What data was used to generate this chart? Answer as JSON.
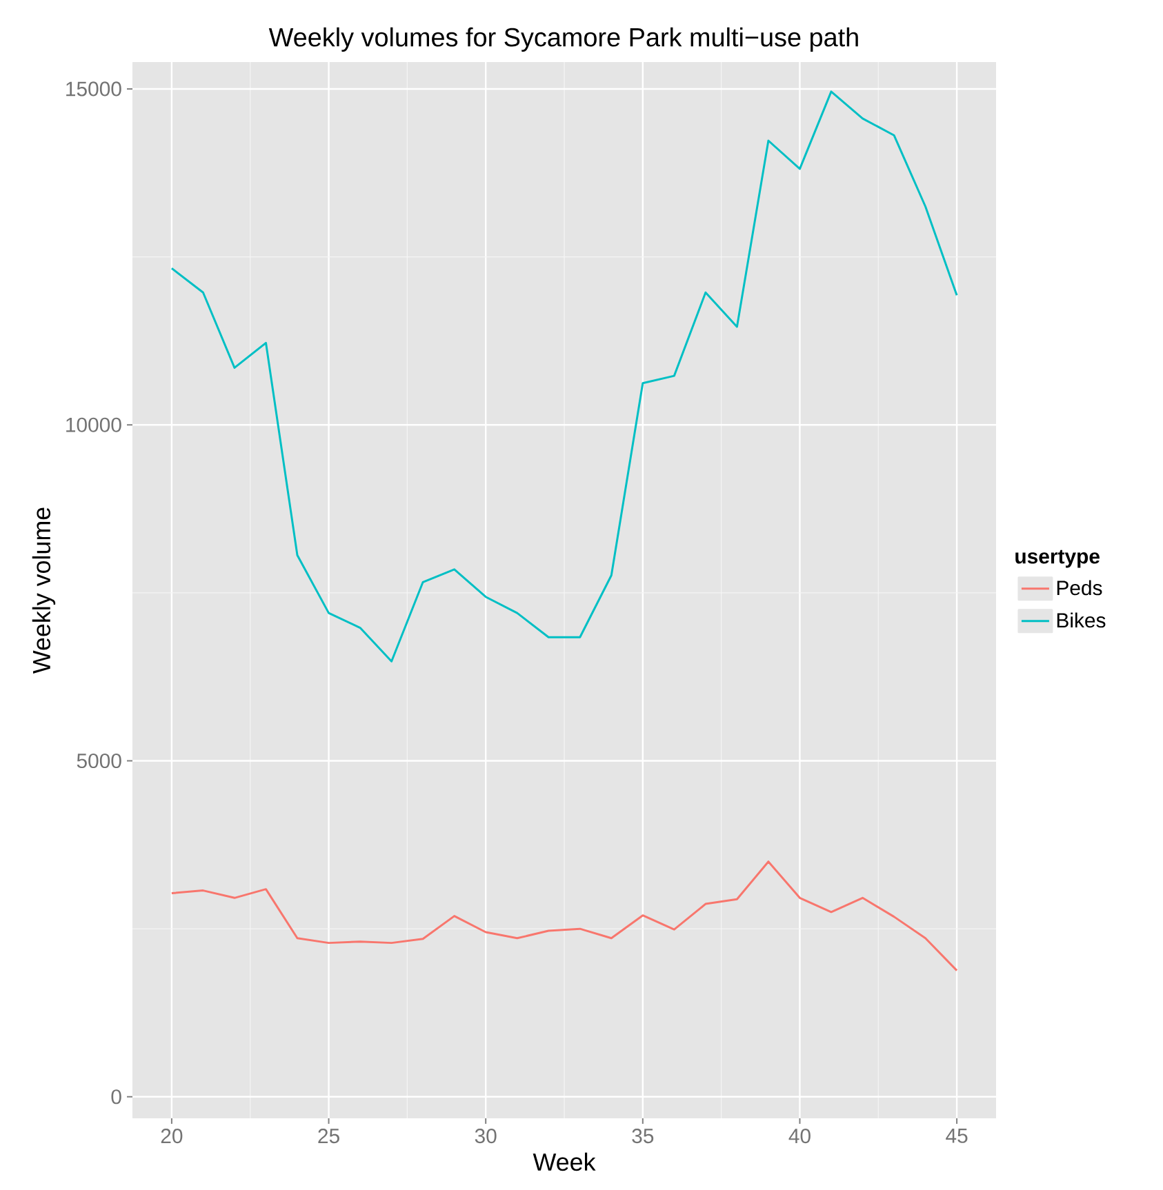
{
  "chart_data": {
    "type": "line",
    "title": "Weekly volumes for Sycamore Park multi−use path",
    "xlabel": "Week",
    "ylabel": "Weekly volume",
    "legend_title": "usertype",
    "x": [
      20,
      21,
      22,
      23,
      24,
      25,
      26,
      27,
      28,
      29,
      30,
      31,
      32,
      33,
      34,
      35,
      36,
      37,
      38,
      39,
      40,
      41,
      42,
      43,
      44,
      45
    ],
    "series": [
      {
        "name": "Peds",
        "color": "#f8766d",
        "values": [
          3030,
          3070,
          2960,
          3090,
          2360,
          2290,
          2310,
          2290,
          2350,
          2690,
          2450,
          2360,
          2470,
          2500,
          2360,
          2700,
          2490,
          2870,
          2940,
          3500,
          2960,
          2750,
          2960,
          2680,
          2360,
          1880
        ]
      },
      {
        "name": "Bikes",
        "color": "#00bfc4",
        "values": [
          12330,
          11970,
          10850,
          11220,
          8060,
          7200,
          6980,
          6480,
          7660,
          7850,
          7440,
          7200,
          6840,
          6840,
          7760,
          10620,
          10730,
          11970,
          11460,
          14230,
          13810,
          14960,
          14560,
          14310,
          13250,
          11930
        ]
      }
    ],
    "xlim": [
      18.75,
      46.25
    ],
    "ylim": [
      -320,
      15400
    ],
    "xticks": [
      20,
      25,
      30,
      35,
      40,
      45
    ],
    "yticks": [
      0,
      5000,
      10000,
      15000
    ],
    "grid": true,
    "legend": "right",
    "marker": "none",
    "line_style": "solid"
  }
}
